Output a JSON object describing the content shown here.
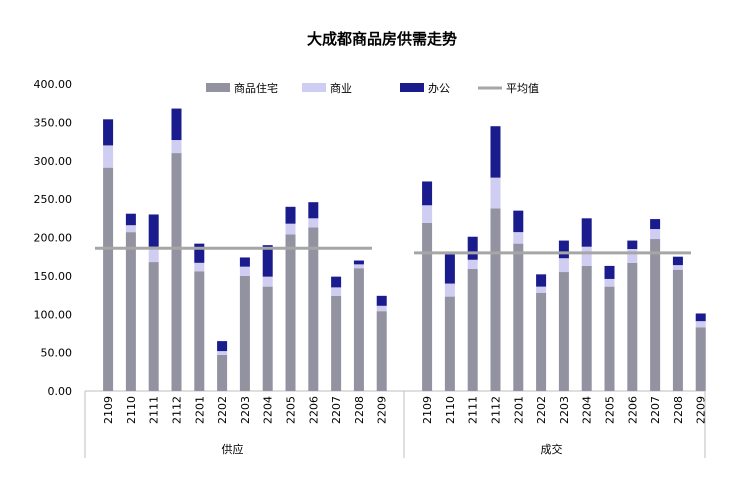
{
  "chart_data": {
    "type": "bar",
    "stacked": true,
    "title": "大成都商品房供需走势",
    "legend": {
      "placement": "top",
      "entries": [
        "商品住宅",
        "商业",
        "办公",
        "平均值"
      ]
    },
    "colors": {
      "residential": "#9392a0",
      "commercial": "#cfcdf2",
      "office": "#1a1b8c",
      "average": "#a6a6a6",
      "axis": "#bfbfbf",
      "text": "#000000"
    },
    "y_axis": {
      "min": 0,
      "max": 400,
      "ticks": [
        "0.00",
        "50.00",
        "100.00",
        "150.00",
        "200.00",
        "250.00",
        "300.00",
        "350.00",
        "400.00"
      ]
    },
    "groups": [
      {
        "name": "供应",
        "categories": [
          "2109",
          "2110",
          "2111",
          "2112",
          "2201",
          "2202",
          "2203",
          "2204",
          "2205",
          "2206",
          "2207",
          "2208",
          "2209"
        ],
        "series": [
          {
            "name": "商品住宅",
            "values": [
              291,
              207,
              168,
              310,
              156,
              47,
              150,
              136,
              204,
              213,
              124,
              160,
              104
            ]
          },
          {
            "name": "商业",
            "values": [
              29,
              9,
              20,
              17,
              11,
              5,
              12,
              13,
              14,
              12,
              11,
              5,
              7
            ]
          },
          {
            "name": "办公",
            "values": [
              34,
              15,
              42,
              41,
              25,
              13,
              12,
              41,
              22,
              21,
              14,
              5,
              13
            ]
          }
        ],
        "average": 186
      },
      {
        "name": "成交",
        "categories": [
          "2109",
          "2110",
          "2111",
          "2112",
          "2201",
          "2202",
          "2203",
          "2204",
          "2205",
          "2206",
          "2207",
          "2208",
          "2209"
        ],
        "series": [
          {
            "name": "商品住宅",
            "values": [
              219,
              123,
              159,
              238,
              192,
              128,
              155,
              163,
              136,
              167,
              198,
              158,
              83
            ]
          },
          {
            "name": "商业",
            "values": [
              23,
              17,
              12,
              40,
              15,
              8,
              18,
              25,
              10,
              18,
              13,
              6,
              8
            ]
          },
          {
            "name": "办公",
            "values": [
              31,
              38,
              30,
              67,
              28,
              16,
              23,
              37,
              17,
              11,
              13,
              11,
              10
            ]
          }
        ],
        "average": 180
      }
    ]
  }
}
